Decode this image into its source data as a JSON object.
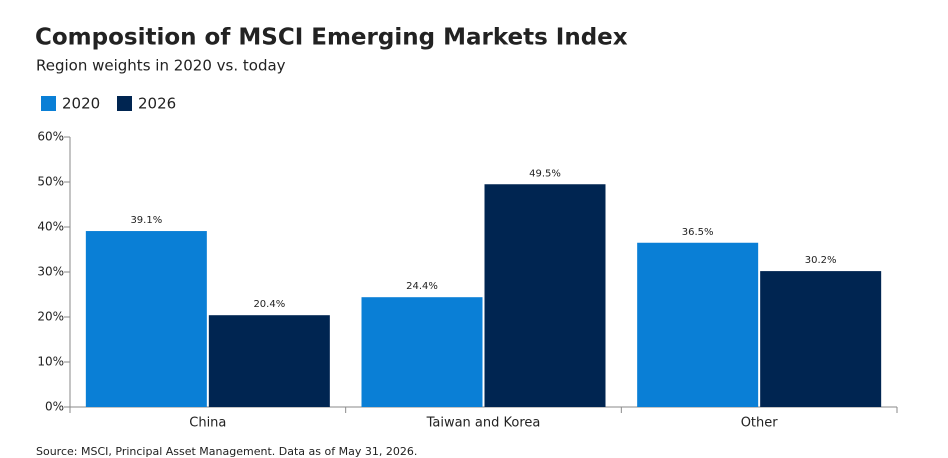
{
  "chart_data": {
    "type": "bar",
    "title": "Composition of MSCI Emerging Markets Index",
    "subtitle": "Region weights in 2020 vs. today",
    "source": "Source: MSCI, Principal Asset Management. Data as of May 31, 2026.",
    "categories": [
      "China",
      "Taiwan and Korea",
      "Other"
    ],
    "series": [
      {
        "name": "2020",
        "color": "#0a7fd6",
        "values": [
          39.1,
          24.4,
          36.5
        ],
        "value_labels": [
          "39.1%",
          "24.4%",
          "36.5%"
        ]
      },
      {
        "name": "2026",
        "color": "#002551",
        "values": [
          20.4,
          49.5,
          30.2
        ],
        "value_labels": [
          "20.4%",
          "49.5%",
          "30.2%"
        ]
      }
    ],
    "ylim": [
      0,
      60
    ],
    "yticks": [
      {
        "value": 0,
        "label": "0%"
      },
      {
        "value": 10,
        "label": "10%"
      },
      {
        "value": 20,
        "label": "20%"
      },
      {
        "value": 30,
        "label": "30%"
      },
      {
        "value": 40,
        "label": "40%"
      },
      {
        "value": 50,
        "label": "50%"
      },
      {
        "value": 60,
        "label": "60%"
      }
    ],
    "grid": false,
    "legend": "top-left"
  }
}
